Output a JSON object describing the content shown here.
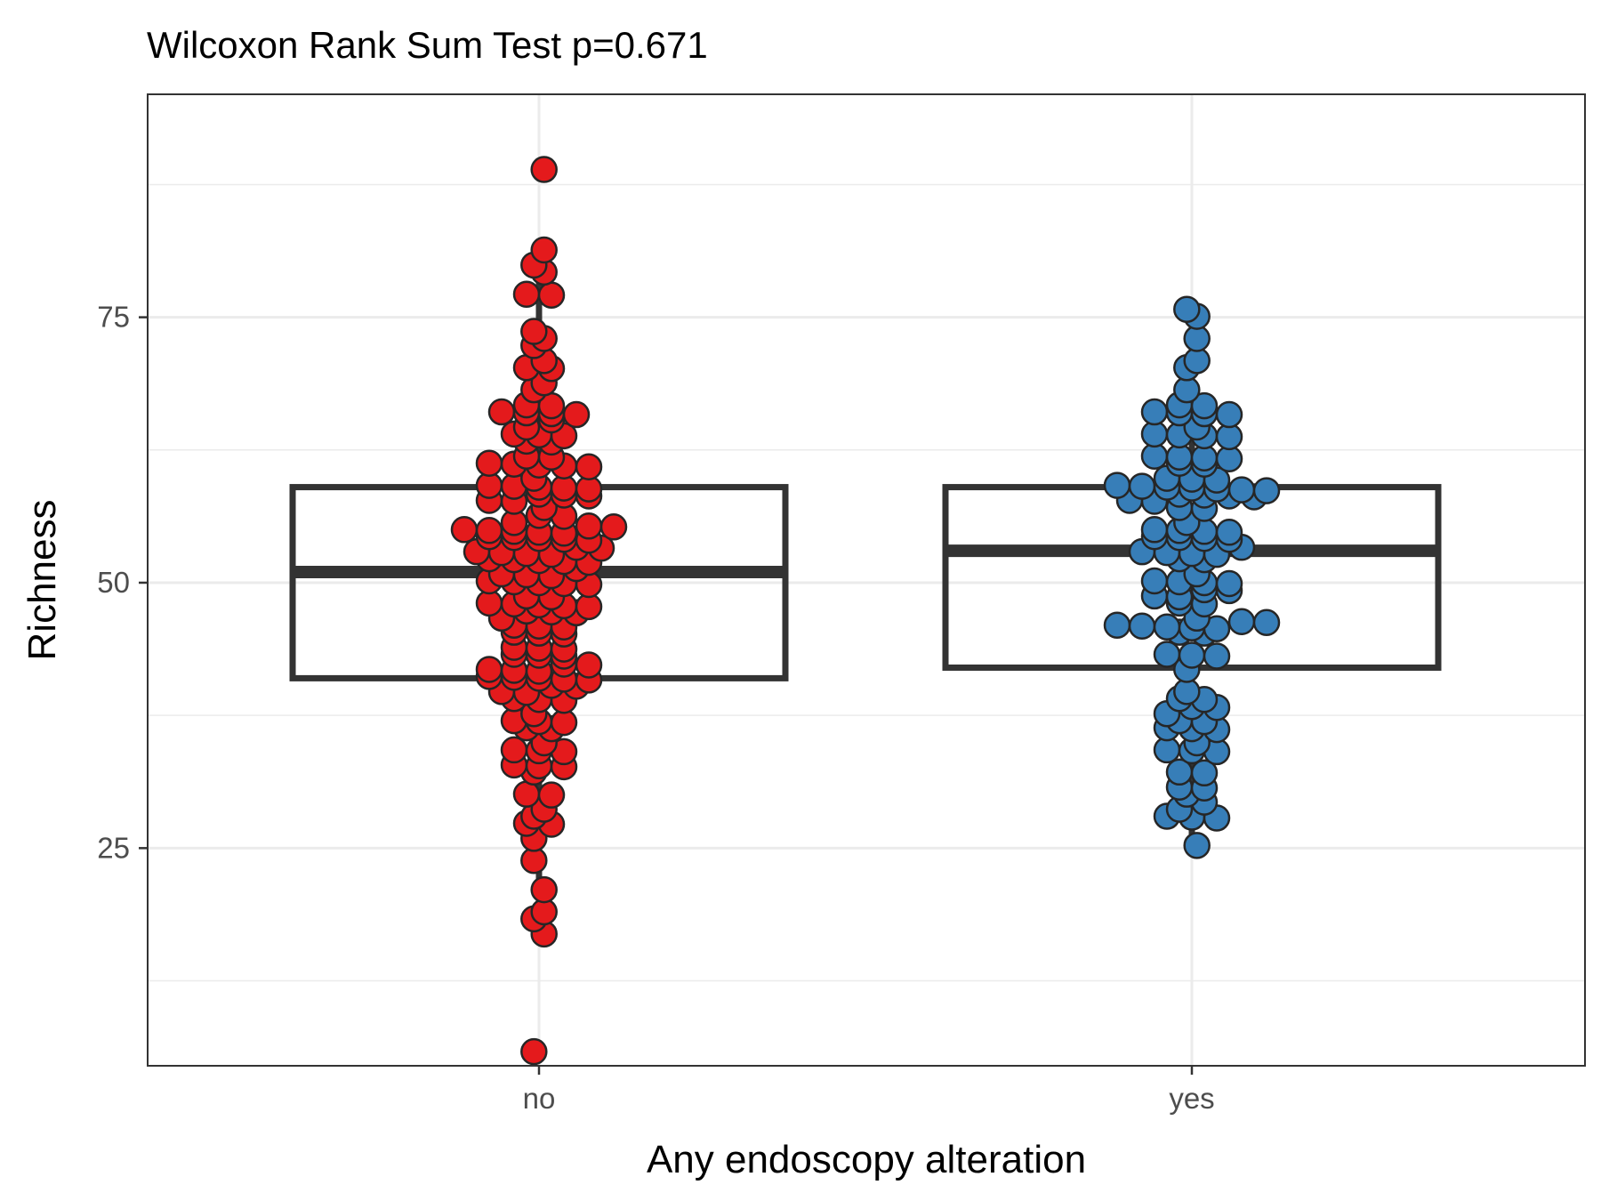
{
  "chart_data": {
    "type": "box-dotplot",
    "title": "Wilcoxon Rank Sum Test p=0.671",
    "xlabel": "Any endoscopy alteration",
    "ylabel": "Richness",
    "categories": [
      "no",
      "yes"
    ],
    "y_ticks": [
      25,
      50,
      75
    ],
    "ylim": [
      4.5,
      96
    ],
    "grid": true,
    "colors": {
      "no": "#e41a1c",
      "yes": "#377eb8",
      "box": "#333333"
    },
    "boxes": [
      {
        "category": "no",
        "q1": 41,
        "median": 51,
        "q3": 59,
        "whisker_low": 17,
        "whisker_high": 81
      },
      {
        "category": "yes",
        "q1": 42,
        "median": 53,
        "q3": 59,
        "whisker_low": 25,
        "whisker_high": 76
      }
    ],
    "series": [
      {
        "category": "no",
        "values": [
          89,
          81,
          80,
          79,
          77,
          77,
          74,
          73,
          72,
          71,
          70,
          70,
          69,
          68,
          67,
          67,
          66,
          66,
          66,
          66,
          65,
          65,
          64,
          64,
          64,
          63,
          63,
          62,
          62,
          61,
          61,
          61,
          61,
          61,
          60,
          59,
          59,
          59,
          59,
          59,
          58,
          58,
          58,
          58,
          58,
          57,
          56,
          56,
          56,
          55,
          55,
          55,
          55,
          55,
          55,
          55,
          54,
          54,
          54,
          54,
          54,
          53,
          53,
          53,
          53,
          53,
          53,
          52,
          52,
          52,
          52,
          52,
          51,
          51,
          51,
          51,
          50,
          50,
          50,
          50,
          50,
          49,
          49,
          48,
          48,
          48,
          48,
          48,
          47,
          47,
          47,
          47,
          46,
          46,
          46,
          45,
          45,
          45,
          44,
          44,
          44,
          43,
          43,
          43,
          42,
          42,
          42,
          42,
          42,
          41,
          41,
          41,
          41,
          41,
          40,
          40,
          40,
          40,
          39,
          39,
          39,
          38,
          37,
          37,
          37,
          36,
          36,
          35,
          34,
          34,
          34,
          33,
          33,
          33,
          32,
          30,
          30,
          29,
          28,
          27,
          27,
          26,
          24,
          21,
          19,
          18,
          17,
          6
        ]
      },
      {
        "category": "yes",
        "values": [
          76,
          75,
          73,
          71,
          70,
          68,
          67,
          67,
          66,
          66,
          66,
          66,
          65,
          64,
          64,
          64,
          64,
          62,
          62,
          62,
          62,
          61,
          61,
          60,
          60,
          60,
          59,
          59,
          59,
          59,
          59,
          59,
          59,
          58,
          58,
          58,
          58,
          58,
          58,
          57,
          57,
          56,
          55,
          55,
          55,
          55,
          54,
          54,
          54,
          54,
          53,
          53,
          53,
          53,
          53,
          52,
          52,
          51,
          50,
          50,
          50,
          50,
          49,
          49,
          49,
          49,
          48,
          48,
          47,
          46,
          46,
          46,
          46,
          46,
          46,
          46,
          45,
          45,
          43,
          43,
          43,
          42,
          40,
          39,
          39,
          38,
          38,
          38,
          37,
          37,
          36,
          36,
          36,
          35,
          34,
          34,
          34,
          32,
          32,
          31,
          31,
          30,
          29,
          29,
          28,
          28,
          28,
          25
        ]
      }
    ]
  }
}
